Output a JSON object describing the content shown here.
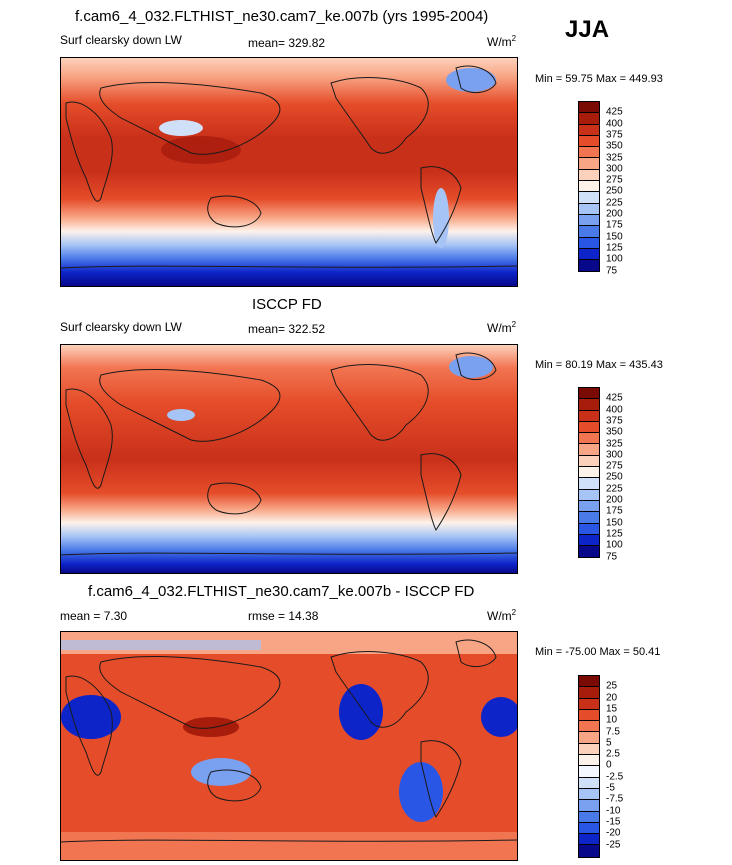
{
  "season": "JJA",
  "colors": {
    "abs_scale": [
      "#08088a",
      "#0d24c8",
      "#2a56e6",
      "#4a7ae8",
      "#7aa0f0",
      "#a6c4f5",
      "#d0e0f8",
      "#fdf2ea",
      "#fcd1bb",
      "#f8a585",
      "#f27552",
      "#e54d2a",
      "#c9301a",
      "#a81c0c",
      "#7a0a04"
    ],
    "diff_scale": [
      "#08088a",
      "#0d24c8",
      "#2a56e6",
      "#4a7ae8",
      "#7aa0f0",
      "#a6c4f5",
      "#d0e0f8",
      "#f4f7ff",
      "#fdf2ea",
      "#fcd1bb",
      "#f8a585",
      "#f27552",
      "#e54d2a",
      "#c9301a",
      "#a81c0c",
      "#7a0a04"
    ],
    "land": "#1a1a1a"
  },
  "panels": [
    {
      "title": "f.cam6_4_032.FLTHIST_ne30.cam7_ke.007b (yrs 1995-2004)",
      "left_label": "Surf clearsky down LW",
      "center_label": "mean= 329.82",
      "units": "W/m",
      "units_sup": "2",
      "min_max": "Min =  59.75 Max = 449.93",
      "levels": [
        "425",
        "400",
        "375",
        "350",
        "325",
        "300",
        "275",
        "250",
        "225",
        "200",
        "175",
        "150",
        "125",
        "100",
        "75"
      ],
      "kind": "abs"
    },
    {
      "title": "ISCCP FD",
      "left_label": "Surf clearsky down LW",
      "center_label": "mean= 322.52",
      "units": "W/m",
      "units_sup": "2",
      "min_max": "Min =  80.19 Max = 435.43",
      "levels": [
        "425",
        "400",
        "375",
        "350",
        "325",
        "300",
        "275",
        "250",
        "225",
        "200",
        "175",
        "150",
        "125",
        "100",
        "75"
      ],
      "kind": "abs"
    },
    {
      "title": "f.cam6_4_032.FLTHIST_ne30.cam7_ke.007b - ISCCP FD",
      "left_label": "mean =   7.30",
      "center_label": "rmse =  14.38",
      "units": "W/m",
      "units_sup": "2",
      "min_max": "Min = -75.00 Max =  50.41",
      "levels": [
        "25",
        "20",
        "15",
        "10",
        "7.5",
        "5",
        "2.5",
        "0",
        "-2.5",
        "-5",
        "-7.5",
        "-10",
        "-15",
        "-20",
        "-25"
      ],
      "kind": "diff"
    }
  ]
}
